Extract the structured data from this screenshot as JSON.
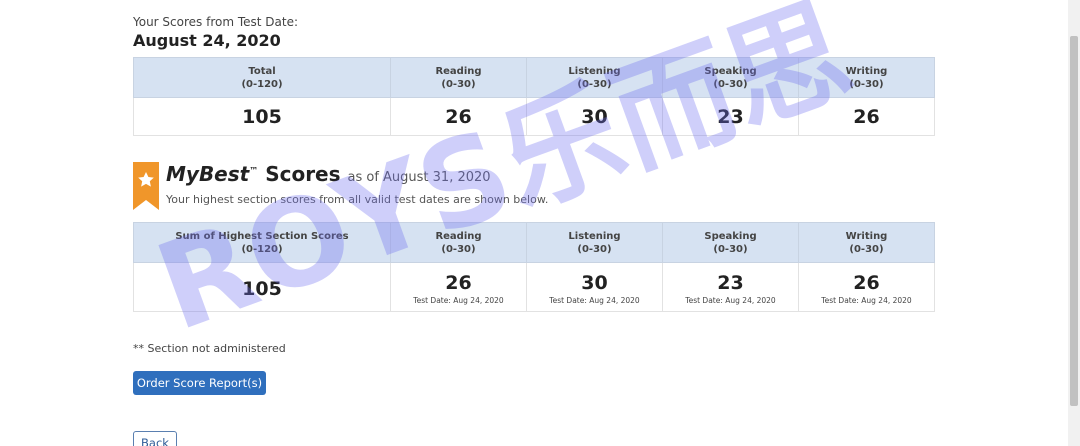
{
  "test_scores": {
    "label": "Your Scores from Test Date:",
    "date": "August 24, 2020",
    "headers": [
      {
        "name": "Total",
        "range": "(0-120)"
      },
      {
        "name": "Reading",
        "range": "(0-30)"
      },
      {
        "name": "Listening",
        "range": "(0-30)"
      },
      {
        "name": "Speaking",
        "range": "(0-30)"
      },
      {
        "name": "Writing",
        "range": "(0-30)"
      }
    ],
    "scores": [
      "105",
      "26",
      "30",
      "23",
      "26"
    ]
  },
  "mybest": {
    "title_brand": "MyBest",
    "trademark": "™",
    "title_rest": "Scores",
    "as_of": "as of August 31, 2020",
    "subtitle": "Your highest section scores from all valid test dates are shown below.",
    "badge_color": "#f0962a",
    "headers": [
      {
        "name": "Sum of Highest Section Scores",
        "range": "(0-120)"
      },
      {
        "name": "Reading",
        "range": "(0-30)"
      },
      {
        "name": "Listening",
        "range": "(0-30)"
      },
      {
        "name": "Speaking",
        "range": "(0-30)"
      },
      {
        "name": "Writing",
        "range": "(0-30)"
      }
    ],
    "scores": [
      "105",
      "26",
      "30",
      "23",
      "26"
    ],
    "test_dates": [
      "",
      "Test Date: Aug 24, 2020",
      "Test Date: Aug 24, 2020",
      "Test Date: Aug 24, 2020",
      "Test Date: Aug 24, 2020"
    ]
  },
  "note": "** Section not administered",
  "buttons": {
    "order": "Order Score Report(s)",
    "back": "Back"
  },
  "watermark": "ROYS乐而思"
}
